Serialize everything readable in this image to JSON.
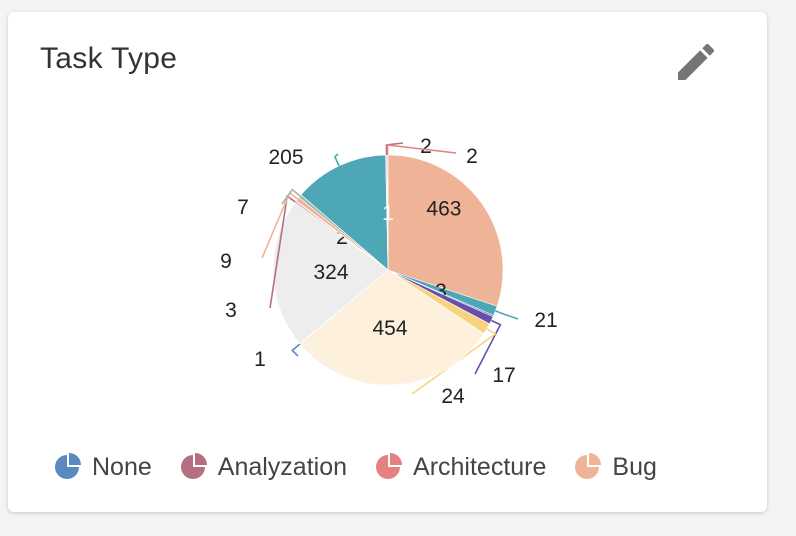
{
  "header": {
    "title": "Task Type",
    "edit_icon": "pencil-icon"
  },
  "chart_data": {
    "type": "pie",
    "series": [
      {
        "slices": [
          {
            "value": 463,
            "color": "#efb497"
          },
          {
            "value": 21,
            "color": "#4ea7b7"
          },
          {
            "value": 3,
            "color": "#4f61b5"
          },
          {
            "value": 17,
            "color": "#6a4faa"
          },
          {
            "value": 24,
            "color": "#f8d37e"
          },
          {
            "value": 454,
            "color": "#fdf0dc"
          },
          {
            "value": 1,
            "color": "#5a88c0"
          },
          {
            "value": 324,
            "color": "#ededed"
          },
          {
            "value": 3,
            "color": "#b56f80"
          },
          {
            "value": 2,
            "color": "#e58080"
          },
          {
            "value": 9,
            "color": "#efb497"
          },
          {
            "value": 7,
            "color": "#9fb7b4"
          },
          {
            "value": 205,
            "color": "#4ea7b7"
          },
          {
            "value": 1,
            "color": "#5a88c0"
          },
          {
            "value": 2,
            "color": "#b56f80"
          },
          {
            "value": 2,
            "color": "#e58080"
          }
        ]
      }
    ],
    "legend": {
      "placement": "bottom",
      "items": [
        {
          "label": "None",
          "color": "#5a88c0",
          "icon": "pie-icon"
        },
        {
          "label": "Analyzation",
          "color": "#b56f80",
          "icon": "pie-icon"
        },
        {
          "label": "Architecture",
          "color": "#e58080",
          "icon": "pie-icon"
        },
        {
          "label": "Bug",
          "color": "#efb497",
          "icon": "pie-icon"
        }
      ]
    }
  }
}
